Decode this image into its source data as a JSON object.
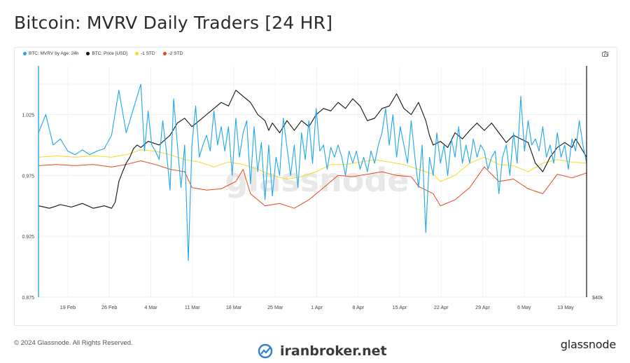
{
  "page": {
    "title": "Bitcoin: MVRV Daily Traders [24 HR]",
    "copyright": "© 2024 Glassnode. All Rights Reserved.",
    "brand": "glassnode",
    "watermark_center": "glassnode",
    "watermark_bottom": "iranbroker.net",
    "camera_icon": "camera-icon"
  },
  "colors": {
    "mvrv": "#1ea7ea",
    "price": "#111111",
    "minus1std": "#f5dc1b",
    "minus2std": "#e9461a"
  },
  "chart_data": {
    "type": "line",
    "title": "Bitcoin: MVRV Daily Traders [24 HR]",
    "x_ticks": [
      "19 Feb",
      "26 Feb",
      "4 Mar",
      "11 Mar",
      "18 Mar",
      "25 Mar",
      "1 Apr",
      "8 Apr",
      "15 Apr",
      "22 Apr",
      "29 Apr",
      "6 May",
      "13 May"
    ],
    "y_left": {
      "ticks": [
        "0.875",
        "0.925",
        "0.975",
        "1.025"
      ],
      "range": [
        0.875,
        1.025
      ]
    },
    "y_right": {
      "ticks": [
        "$40k"
      ]
    },
    "grid": true,
    "legend_placement": "top-left",
    "series": [
      {
        "name": "BTC: MVRV by Age: 24h",
        "axis": "left",
        "points": [
          [
            0,
            1.01
          ],
          [
            2,
            1.025
          ],
          [
            4,
            1.0
          ],
          [
            6,
            1.005
          ],
          [
            8,
            0.995
          ],
          [
            10,
            0.992
          ],
          [
            12,
            0.996
          ],
          [
            14,
            0.992
          ],
          [
            16,
            0.995
          ],
          [
            18,
            0.997
          ],
          [
            20,
            1.008
          ],
          [
            22,
            1.045
          ],
          [
            24,
            1.01
          ],
          [
            26,
            1.03
          ],
          [
            28,
            1.05
          ],
          [
            29,
            0.995
          ],
          [
            30,
            1.028
          ],
          [
            31,
            1.0
          ],
          [
            32,
            0.995
          ],
          [
            33,
            0.988
          ],
          [
            34,
            1.02
          ],
          [
            35,
            0.995
          ],
          [
            36,
            0.963
          ],
          [
            37,
            1.038
          ],
          [
            38,
            1.0
          ],
          [
            39,
            0.965
          ],
          [
            40,
            1.0
          ],
          [
            41,
            0.905
          ],
          [
            42,
            1.0
          ],
          [
            43,
            1.032
          ],
          [
            44,
            0.99
          ],
          [
            45,
            1.0
          ],
          [
            46,
            1.008
          ],
          [
            47,
            0.995
          ],
          [
            48,
            1.028
          ],
          [
            49,
            1.0
          ],
          [
            50,
            1.015
          ],
          [
            51,
            0.995
          ],
          [
            52,
            1.015
          ],
          [
            53,
            0.975
          ],
          [
            54,
            1.022
          ],
          [
            55,
            0.99
          ],
          [
            56,
            1.01
          ],
          [
            57,
            1.02
          ],
          [
            58,
            0.968
          ],
          [
            59,
            1.015
          ],
          [
            60,
            0.978
          ],
          [
            61,
            1.002
          ],
          [
            62,
            0.955
          ],
          [
            63,
            1.0
          ],
          [
            64,
            0.958
          ],
          [
            65,
            0.99
          ],
          [
            66,
            0.975
          ],
          [
            67,
            1.022
          ],
          [
            68,
            0.998
          ],
          [
            69,
            0.975
          ],
          [
            70,
            1.0
          ],
          [
            71,
            0.965
          ],
          [
            72,
            1.01
          ],
          [
            73,
            0.988
          ],
          [
            74,
            1.02
          ],
          [
            75,
            0.985
          ],
          [
            76,
            1.03
          ],
          [
            77,
            0.995
          ],
          [
            78,
            1.0
          ],
          [
            79,
            0.98
          ],
          [
            80,
            0.998
          ],
          [
            81,
            0.99
          ],
          [
            82,
            1.0
          ],
          [
            83,
            0.99
          ],
          [
            84,
            0.975
          ],
          [
            85,
            0.995
          ],
          [
            86,
            0.985
          ],
          [
            87,
            0.995
          ],
          [
            88,
            0.98
          ],
          [
            89,
            0.99
          ],
          [
            90,
            0.978
          ],
          [
            91,
            0.995
          ],
          [
            92,
            0.985
          ],
          [
            93,
            1.0
          ],
          [
            94,
            1.01
          ],
          [
            95,
            1.03
          ],
          [
            96,
            1.0
          ],
          [
            97,
            1.025
          ],
          [
            98,
            0.99
          ],
          [
            99,
            1.015
          ],
          [
            100,
            1.0
          ],
          [
            101,
            0.985
          ],
          [
            102,
            1.02
          ],
          [
            103,
            0.99
          ],
          [
            104,
            0.965
          ],
          [
            105,
            1.0
          ],
          [
            106,
            0.928
          ],
          [
            107,
            0.99
          ],
          [
            108,
            0.975
          ],
          [
            109,
            1.01
          ],
          [
            110,
            0.985
          ],
          [
            111,
            1.0
          ],
          [
            112,
            0.975
          ],
          [
            113,
            1.005
          ],
          [
            114,
            0.99
          ],
          [
            115,
            1.015
          ],
          [
            116,
            0.985
          ],
          [
            117,
            1.0
          ],
          [
            118,
            0.985
          ],
          [
            119,
            1.005
          ],
          [
            120,
            0.99
          ],
          [
            121,
            1.0
          ],
          [
            122,
            0.995
          ],
          [
            123,
            0.98
          ],
          [
            124,
            0.99
          ],
          [
            125,
            0.995
          ],
          [
            126,
            0.96
          ],
          [
            127,
            0.99
          ],
          [
            128,
            1.0
          ],
          [
            129,
            0.975
          ],
          [
            130,
            1.01
          ],
          [
            131,
            0.985
          ],
          [
            132,
            1.04
          ],
          [
            133,
            0.995
          ],
          [
            134,
            1.02
          ],
          [
            135,
            1.0
          ],
          [
            136,
            1.005
          ],
          [
            137,
            0.995
          ],
          [
            138,
            1.015
          ],
          [
            139,
            0.99
          ],
          [
            140,
            1.0
          ],
          [
            141,
            0.985
          ],
          [
            142,
            1.01
          ],
          [
            143,
            0.99
          ],
          [
            144,
            1.0
          ],
          [
            145,
            0.98
          ],
          [
            146,
            1.005
          ],
          [
            147,
            0.995
          ],
          [
            148,
            1.02
          ],
          [
            149,
            1.0
          ],
          [
            150,
            0.985
          ]
        ]
      },
      {
        "name": "BTC: Price [USD]",
        "axis": "right",
        "points": [
          [
            0,
            0.95
          ],
          [
            3,
            0.948
          ],
          [
            6,
            0.951
          ],
          [
            9,
            0.949
          ],
          [
            12,
            0.952
          ],
          [
            15,
            0.948
          ],
          [
            18,
            0.95
          ],
          [
            20,
            0.948
          ],
          [
            21,
            0.953
          ],
          [
            22,
            0.97
          ],
          [
            23,
            0.978
          ],
          [
            24,
            0.985
          ],
          [
            25,
            0.99
          ],
          [
            26,
            0.997
          ],
          [
            27,
            1.0
          ],
          [
            28,
            0.998
          ],
          [
            30,
            1.003
          ],
          [
            33,
            1.0
          ],
          [
            36,
            1.008
          ],
          [
            38,
            1.018
          ],
          [
            40,
            1.022
          ],
          [
            42,
            1.015
          ],
          [
            44,
            1.02
          ],
          [
            46,
            1.025
          ],
          [
            48,
            1.03
          ],
          [
            50,
            1.035
          ],
          [
            52,
            1.032
          ],
          [
            54,
            1.045
          ],
          [
            56,
            1.04
          ],
          [
            58,
            1.035
          ],
          [
            60,
            1.025
          ],
          [
            62,
            1.02
          ],
          [
            63,
            1.012
          ],
          [
            64,
            1.018
          ],
          [
            66,
            1.01
          ],
          [
            68,
            1.02
          ],
          [
            70,
            1.012
          ],
          [
            72,
            1.02
          ],
          [
            74,
            1.015
          ],
          [
            76,
            1.025
          ],
          [
            78,
            1.03
          ],
          [
            80,
            1.028
          ],
          [
            82,
            1.035
          ],
          [
            84,
            1.03
          ],
          [
            86,
            1.038
          ],
          [
            88,
            1.032
          ],
          [
            90,
            1.02
          ],
          [
            92,
            1.022
          ],
          [
            94,
            1.03
          ],
          [
            96,
            1.032
          ],
          [
            98,
            1.042
          ],
          [
            100,
            1.03
          ],
          [
            102,
            1.025
          ],
          [
            104,
            1.035
          ],
          [
            106,
            1.02
          ],
          [
            107,
            1.008
          ],
          [
            108,
            1.0
          ],
          [
            110,
            1.003
          ],
          [
            112,
            0.998
          ],
          [
            114,
            1.01
          ],
          [
            116,
            1.005
          ],
          [
            118,
            1.012
          ],
          [
            120,
            1.018
          ],
          [
            122,
            1.012
          ],
          [
            124,
            1.018
          ],
          [
            126,
            1.01
          ],
          [
            128,
            1.002
          ],
          [
            130,
            1.008
          ],
          [
            132,
            1.005
          ],
          [
            134,
            1.002
          ],
          [
            136,
            0.985
          ],
          [
            138,
            0.978
          ],
          [
            140,
            0.99
          ],
          [
            142,
            0.998
          ],
          [
            144,
            1.002
          ],
          [
            146,
            0.998
          ],
          [
            147,
            1.005
          ],
          [
            148,
            1.0
          ],
          [
            149,
            0.995
          ],
          [
            150,
            0.99
          ]
        ]
      },
      {
        "name": "-1 STD",
        "axis": "left",
        "points": [
          [
            0,
            0.99
          ],
          [
            5,
            0.991
          ],
          [
            10,
            0.99
          ],
          [
            15,
            0.991
          ],
          [
            20,
            0.99
          ],
          [
            24,
            0.992
          ],
          [
            28,
            0.996
          ],
          [
            32,
            0.995
          ],
          [
            36,
            0.992
          ],
          [
            40,
            0.988
          ],
          [
            44,
            0.986
          ],
          [
            48,
            0.982
          ],
          [
            52,
            0.986
          ],
          [
            56,
            0.984
          ],
          [
            60,
            0.98
          ],
          [
            64,
            0.975
          ],
          [
            68,
            0.972
          ],
          [
            72,
            0.974
          ],
          [
            76,
            0.978
          ],
          [
            80,
            0.984
          ],
          [
            84,
            0.984
          ],
          [
            88,
            0.986
          ],
          [
            92,
            0.988
          ],
          [
            96,
            0.986
          ],
          [
            100,
            0.984
          ],
          [
            104,
            0.98
          ],
          [
            108,
            0.976
          ],
          [
            110,
            0.97
          ],
          [
            114,
            0.975
          ],
          [
            118,
            0.985
          ],
          [
            122,
            0.99
          ],
          [
            126,
            0.984
          ],
          [
            130,
            0.983
          ],
          [
            134,
            0.978
          ],
          [
            138,
            0.985
          ],
          [
            142,
            0.988
          ],
          [
            146,
            0.986
          ],
          [
            150,
            0.985
          ]
        ]
      },
      {
        "name": "-2 STD",
        "axis": "left",
        "points": [
          [
            0,
            0.983
          ],
          [
            5,
            0.984
          ],
          [
            10,
            0.983
          ],
          [
            15,
            0.984
          ],
          [
            20,
            0.982
          ],
          [
            24,
            0.984
          ],
          [
            28,
            0.987
          ],
          [
            32,
            0.984
          ],
          [
            36,
            0.98
          ],
          [
            40,
            0.978
          ],
          [
            42,
            0.965
          ],
          [
            46,
            0.963
          ],
          [
            50,
            0.964
          ],
          [
            54,
            0.97
          ],
          [
            56,
            0.98
          ],
          [
            58,
            0.96
          ],
          [
            62,
            0.95
          ],
          [
            66,
            0.952
          ],
          [
            70,
            0.948
          ],
          [
            74,
            0.955
          ],
          [
            78,
            0.965
          ],
          [
            82,
            0.975
          ],
          [
            86,
            0.974
          ],
          [
            90,
            0.976
          ],
          [
            94,
            0.978
          ],
          [
            98,
            0.975
          ],
          [
            102,
            0.974
          ],
          [
            104,
            0.966
          ],
          [
            108,
            0.96
          ],
          [
            110,
            0.95
          ],
          [
            114,
            0.955
          ],
          [
            118,
            0.965
          ],
          [
            122,
            0.982
          ],
          [
            126,
            0.97
          ],
          [
            130,
            0.972
          ],
          [
            134,
            0.964
          ],
          [
            138,
            0.96
          ],
          [
            142,
            0.976
          ],
          [
            146,
            0.973
          ],
          [
            150,
            0.977
          ]
        ]
      }
    ]
  },
  "legend": [
    {
      "label": "BTC: MVRV by Age: 24h",
      "color": "#1ea7ea"
    },
    {
      "label": "BTC: Price [USD]",
      "color": "#111111"
    },
    {
      "label": "-1 STD",
      "color": "#f5dc1b"
    },
    {
      "label": "-2 STD",
      "color": "#e9461a"
    }
  ]
}
